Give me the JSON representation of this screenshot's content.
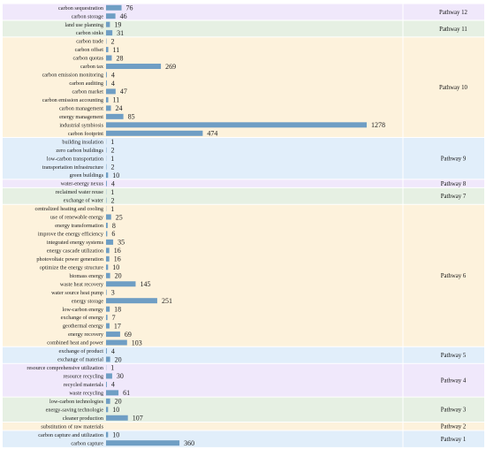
{
  "chart_data": {
    "type": "bar",
    "orientation": "horizontal",
    "bar_color": "#6f9ec4",
    "groups": [
      {
        "name": "Pathway 12",
        "color": "#f0e8fb",
        "items": [
          {
            "label": "carbon sequestration",
            "value": 76
          },
          {
            "label": "carbon storage",
            "value": 46
          }
        ]
      },
      {
        "name": "Pathway 11",
        "color": "#e6f0e3",
        "items": [
          {
            "label": "land use planning",
            "value": 19
          },
          {
            "label": "carbon sinks",
            "value": 31
          }
        ]
      },
      {
        "name": "Pathway 10",
        "color": "#fdf2dc",
        "items": [
          {
            "label": "carbon trade",
            "value": 2
          },
          {
            "label": "carbon offset",
            "value": 11
          },
          {
            "label": "carbon quotas",
            "value": 28
          },
          {
            "label": "carbon tax",
            "value": 269
          },
          {
            "label": "carbon emission monitoring",
            "value": 4
          },
          {
            "label": "carbon auditing",
            "value": 4
          },
          {
            "label": "carbon market",
            "value": 47
          },
          {
            "label": "carbon emission accounting",
            "value": 11
          },
          {
            "label": "carbon management",
            "value": 24
          },
          {
            "label": "energy management",
            "value": 85
          },
          {
            "label": "industrial symbiosis",
            "value": 1278
          },
          {
            "label": "carbon footprint",
            "value": 474
          }
        ]
      },
      {
        "name": "Pathway 9",
        "color": "#e1eefa",
        "items": [
          {
            "label": "building insulation",
            "value": 1
          },
          {
            "label": "zero carbon buildings",
            "value": 2
          },
          {
            "label": "low-carbon transportation",
            "value": 1
          },
          {
            "label": "transportation infrastructure",
            "value": 2
          },
          {
            "label": "green buildings",
            "value": 10
          }
        ]
      },
      {
        "name": "Pathway 8",
        "color": "#f0e8fb",
        "items": [
          {
            "label": "water-energy nexus",
            "value": 4
          }
        ]
      },
      {
        "name": "Pathway 7",
        "color": "#e6f0e3",
        "items": [
          {
            "label": "reclaimed water reuse",
            "value": 1
          },
          {
            "label": "exchange of water",
            "value": 2
          }
        ]
      },
      {
        "name": "Pathway 6",
        "color": "#fdf2dc",
        "items": [
          {
            "label": "centralized heating and cooling",
            "value": 1
          },
          {
            "label": "use of renewable energy",
            "value": 25
          },
          {
            "label": "energy transformation",
            "value": 8
          },
          {
            "label": "improve the energy efficiency",
            "value": 6
          },
          {
            "label": "integrated energy systems",
            "value": 35
          },
          {
            "label": "energy cascade utilization",
            "value": 16
          },
          {
            "label": "photovoltaic power generation",
            "value": 16
          },
          {
            "label": "optimize the energy structure",
            "value": 10
          },
          {
            "label": "biomass energy",
            "value": 20
          },
          {
            "label": "waste heat recovery",
            "value": 145
          },
          {
            "label": "water source heat pump",
            "value": 3
          },
          {
            "label": "energy storage",
            "value": 251
          },
          {
            "label": "low-carbon energy",
            "value": 18
          },
          {
            "label": "exchange of energy",
            "value": 7
          },
          {
            "label": "geothermal energy",
            "value": 17
          },
          {
            "label": "energy recovery",
            "value": 69
          },
          {
            "label": "combined heat and power",
            "value": 103
          }
        ]
      },
      {
        "name": "Pathway 5",
        "color": "#e1eefa",
        "items": [
          {
            "label": "exchange of product",
            "value": 4
          },
          {
            "label": "exchange of material",
            "value": 20
          }
        ]
      },
      {
        "name": "Pathway 4",
        "color": "#f0e8fb",
        "items": [
          {
            "label": "resource comprehensive utilization",
            "value": 1
          },
          {
            "label": "resource recycling",
            "value": 30
          },
          {
            "label": "recycled materials",
            "value": 4
          },
          {
            "label": "waste recycling",
            "value": 61
          }
        ]
      },
      {
        "name": "Pathway 3",
        "color": "#e6f0e3",
        "items": [
          {
            "label": "low-carbon technologies",
            "value": 20
          },
          {
            "label": "energy-saving technologie",
            "value": 10
          },
          {
            "label": "cleaner production",
            "value": 107
          }
        ]
      },
      {
        "name": "Pathway 2",
        "color": "#fdf2dc",
        "items": [
          {
            "label": "substitution of raw materials",
            "value": 0
          }
        ]
      },
      {
        "name": "Pathway 1",
        "color": "#e1eefa",
        "items": [
          {
            "label": "carbon capture and utilization",
            "value": 10
          },
          {
            "label": "carbon capture",
            "value": 360
          }
        ]
      }
    ]
  }
}
